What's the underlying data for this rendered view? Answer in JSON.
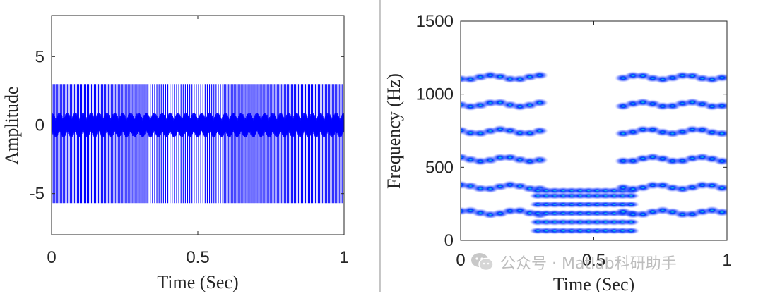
{
  "watermark": {
    "text": "公众号 · Matlab科研助手",
    "icon": "wechat-icon"
  },
  "colors": {
    "signal": "#0000ff",
    "axis": "#262626"
  },
  "chart_data": [
    {
      "type": "line",
      "title": "",
      "xlabel": "Time (Sec)",
      "ylabel": "Amplitude",
      "xlim": [
        0,
        1
      ],
      "ylim": [
        -8,
        8
      ],
      "xticks": [
        0,
        0.5,
        1
      ],
      "xtick_labels": [
        "0",
        "0.5",
        "1"
      ],
      "yticks": [
        -5,
        0,
        5
      ],
      "ytick_labels": [
        "-5",
        "0",
        "5"
      ],
      "grid": false,
      "series": [
        {
          "x": [
            0,
            0.33,
            0.33,
            0.59,
            0.59,
            1
          ],
          "upper_envelope": [
            3.0,
            3.0,
            3.0,
            3.0,
            3.0,
            3.0
          ],
          "lower_envelope": [
            -5.7,
            -5.7,
            -5.7,
            -5.7,
            -5.7,
            -5.7
          ],
          "segments": [
            "dense",
            "dense",
            "sparse",
            "sparse",
            "dense",
            "dense"
          ]
        }
      ]
    },
    {
      "type": "heatmap",
      "title": "",
      "xlabel": "Time (Sec)",
      "ylabel": "Frequency (Hz)",
      "xlim": [
        0,
        1
      ],
      "ylim": [
        0,
        1500
      ],
      "xticks": [
        0,
        0.5,
        1
      ],
      "xtick_labels": [
        "0",
        "0.5",
        "1"
      ],
      "yticks": [
        0,
        500,
        1000,
        1500
      ],
      "ytick_labels": [
        "0",
        "500",
        "1000",
        "1500"
      ],
      "grid": false,
      "bands": [
        {
          "time": [
            0,
            0.32
          ],
          "freqs": [
            190,
            365,
            555,
            745,
            930,
            1115
          ]
        },
        {
          "time": [
            0.29,
            0.65
          ],
          "freqs": [
            65,
            125,
            185,
            245,
            305,
            340
          ]
        },
        {
          "time": [
            0.61,
            1.0
          ],
          "freqs": [
            190,
            365,
            555,
            745,
            930,
            1115
          ]
        }
      ]
    }
  ]
}
